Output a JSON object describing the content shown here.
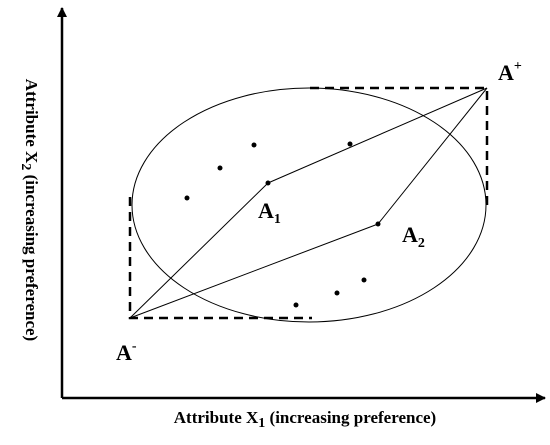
{
  "axes": {
    "x_label": {
      "text": "Attribute X",
      "subscript": "1",
      "suffix": " (increasing preference)"
    },
    "y_label": {
      "text": "Attribute X",
      "subscript": "2",
      "suffix": " (increasing preference)"
    }
  },
  "points": [
    {
      "text": "A",
      "superscript": "+"
    },
    {
      "text": "A",
      "superscript": "-"
    },
    {
      "text": "A",
      "subscript": "1"
    },
    {
      "text": "A",
      "subscript": "2"
    }
  ]
}
